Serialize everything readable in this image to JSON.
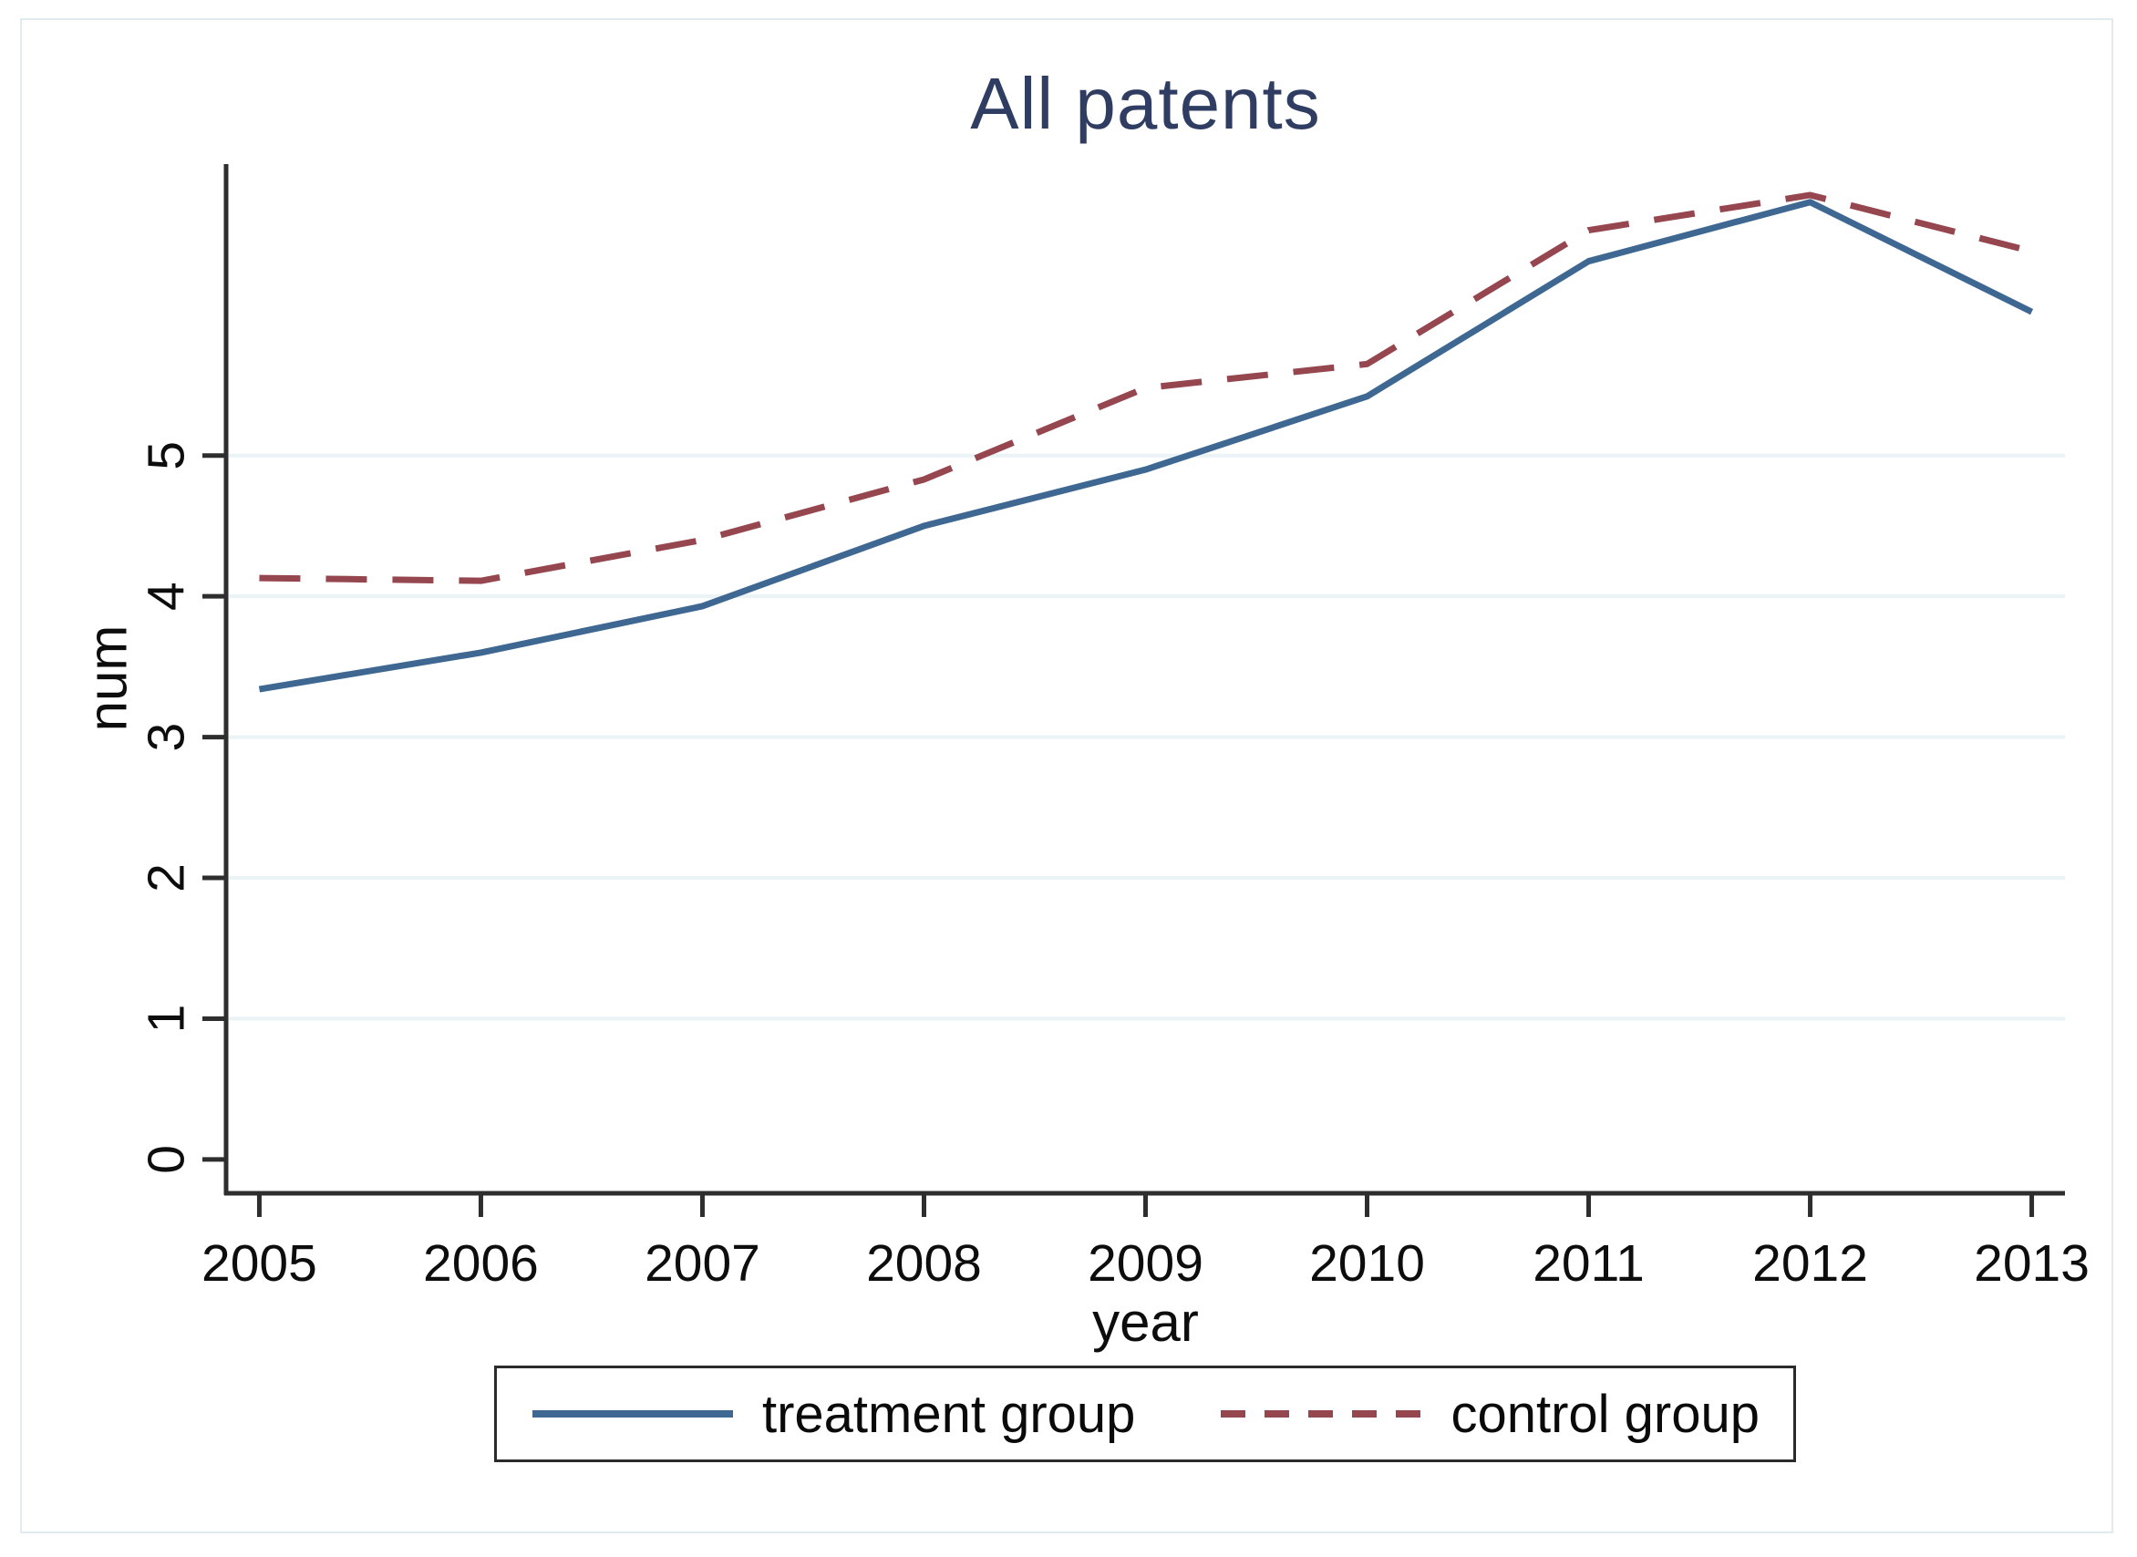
{
  "chart_data": {
    "type": "line",
    "title": "All patents",
    "xlabel": "year",
    "ylabel": "num",
    "x": [
      2005,
      2006,
      2007,
      2008,
      2009,
      2010,
      2011,
      2012,
      2013
    ],
    "series": [
      {
        "name": "treatment group",
        "color": "#3e6892",
        "style": "solid",
        "values": [
          3.34,
          3.6,
          3.93,
          4.5,
          4.9,
          5.42,
          6.38,
          6.8,
          6.02
        ]
      },
      {
        "name": "control group",
        "color": "#96464e",
        "style": "dashed",
        "values": [
          4.13,
          4.11,
          4.4,
          4.83,
          5.48,
          5.65,
          6.6,
          6.85,
          6.45
        ]
      }
    ],
    "yticks": [
      0,
      1,
      2,
      3,
      4,
      5
    ],
    "ylim": [
      -0.24,
      7.07
    ],
    "xlim": [
      2004.85,
      2013.15
    ],
    "grid": true,
    "legend_position": "bottom",
    "title_color": "#303d62",
    "axis_color": "#2e2e2e",
    "grid_color": "#eaf3f5"
  }
}
